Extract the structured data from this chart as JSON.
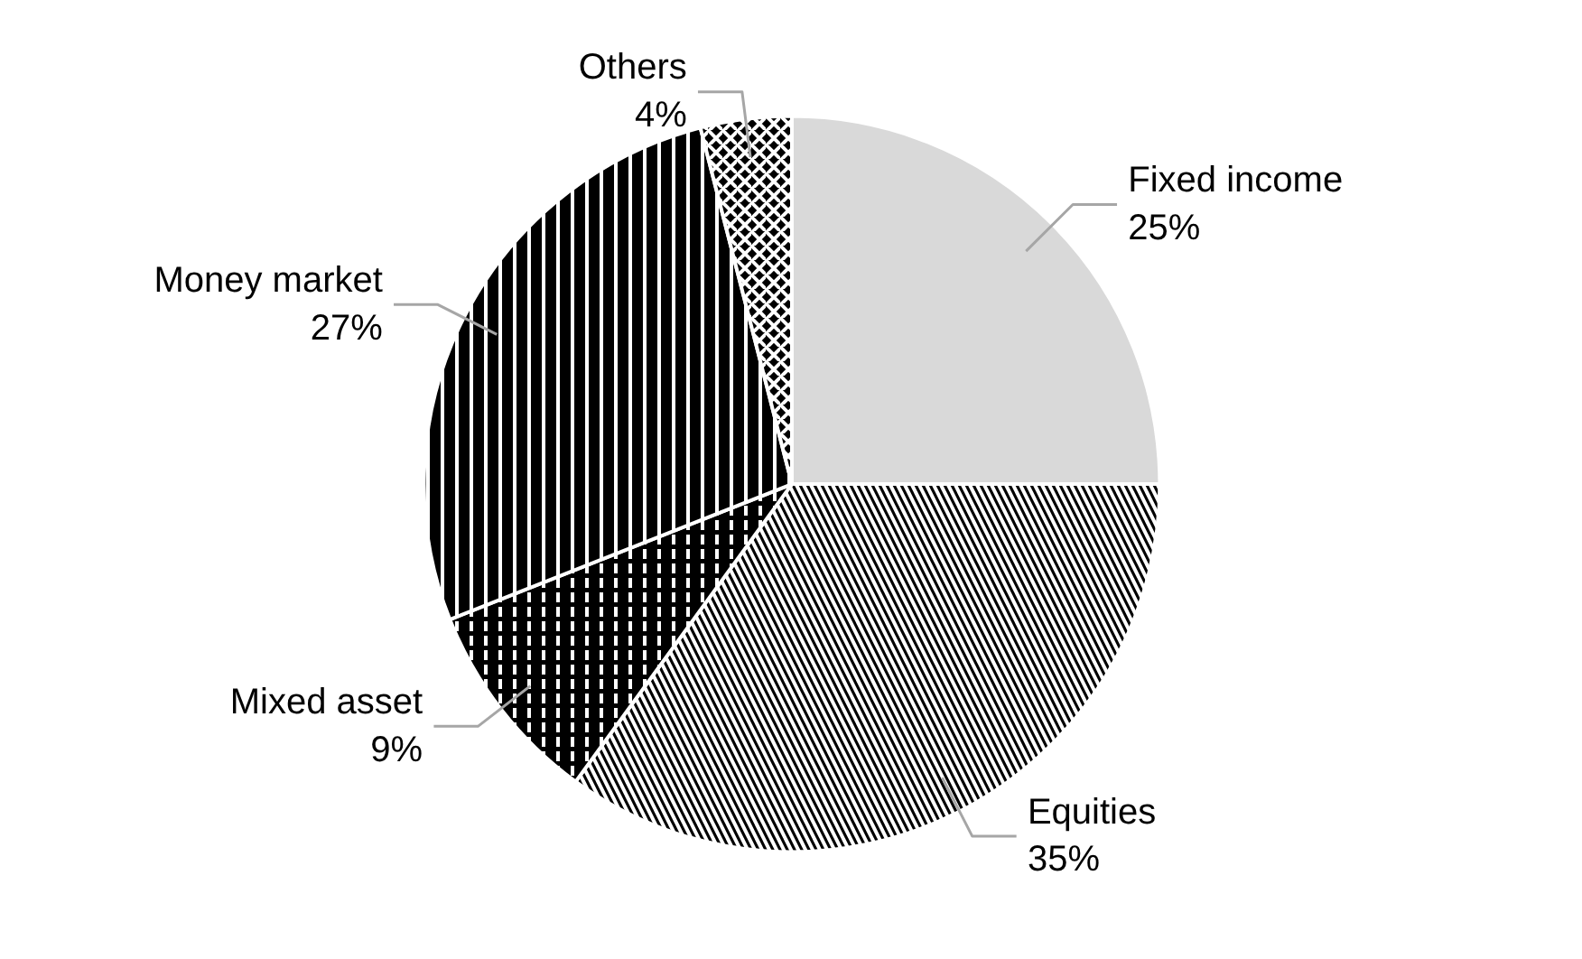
{
  "chart_data": {
    "type": "pie",
    "categories": [
      "Fixed income",
      "Equities",
      "Mixed asset",
      "Money market",
      "Others"
    ],
    "values": [
      25,
      35,
      9,
      27,
      4
    ],
    "colors": [
      "#d9d9d9",
      "#000000",
      "#000000",
      "#000000",
      "#000000"
    ],
    "value_labels": [
      "25%",
      "35%",
      "9%",
      "27%",
      "4%"
    ]
  }
}
